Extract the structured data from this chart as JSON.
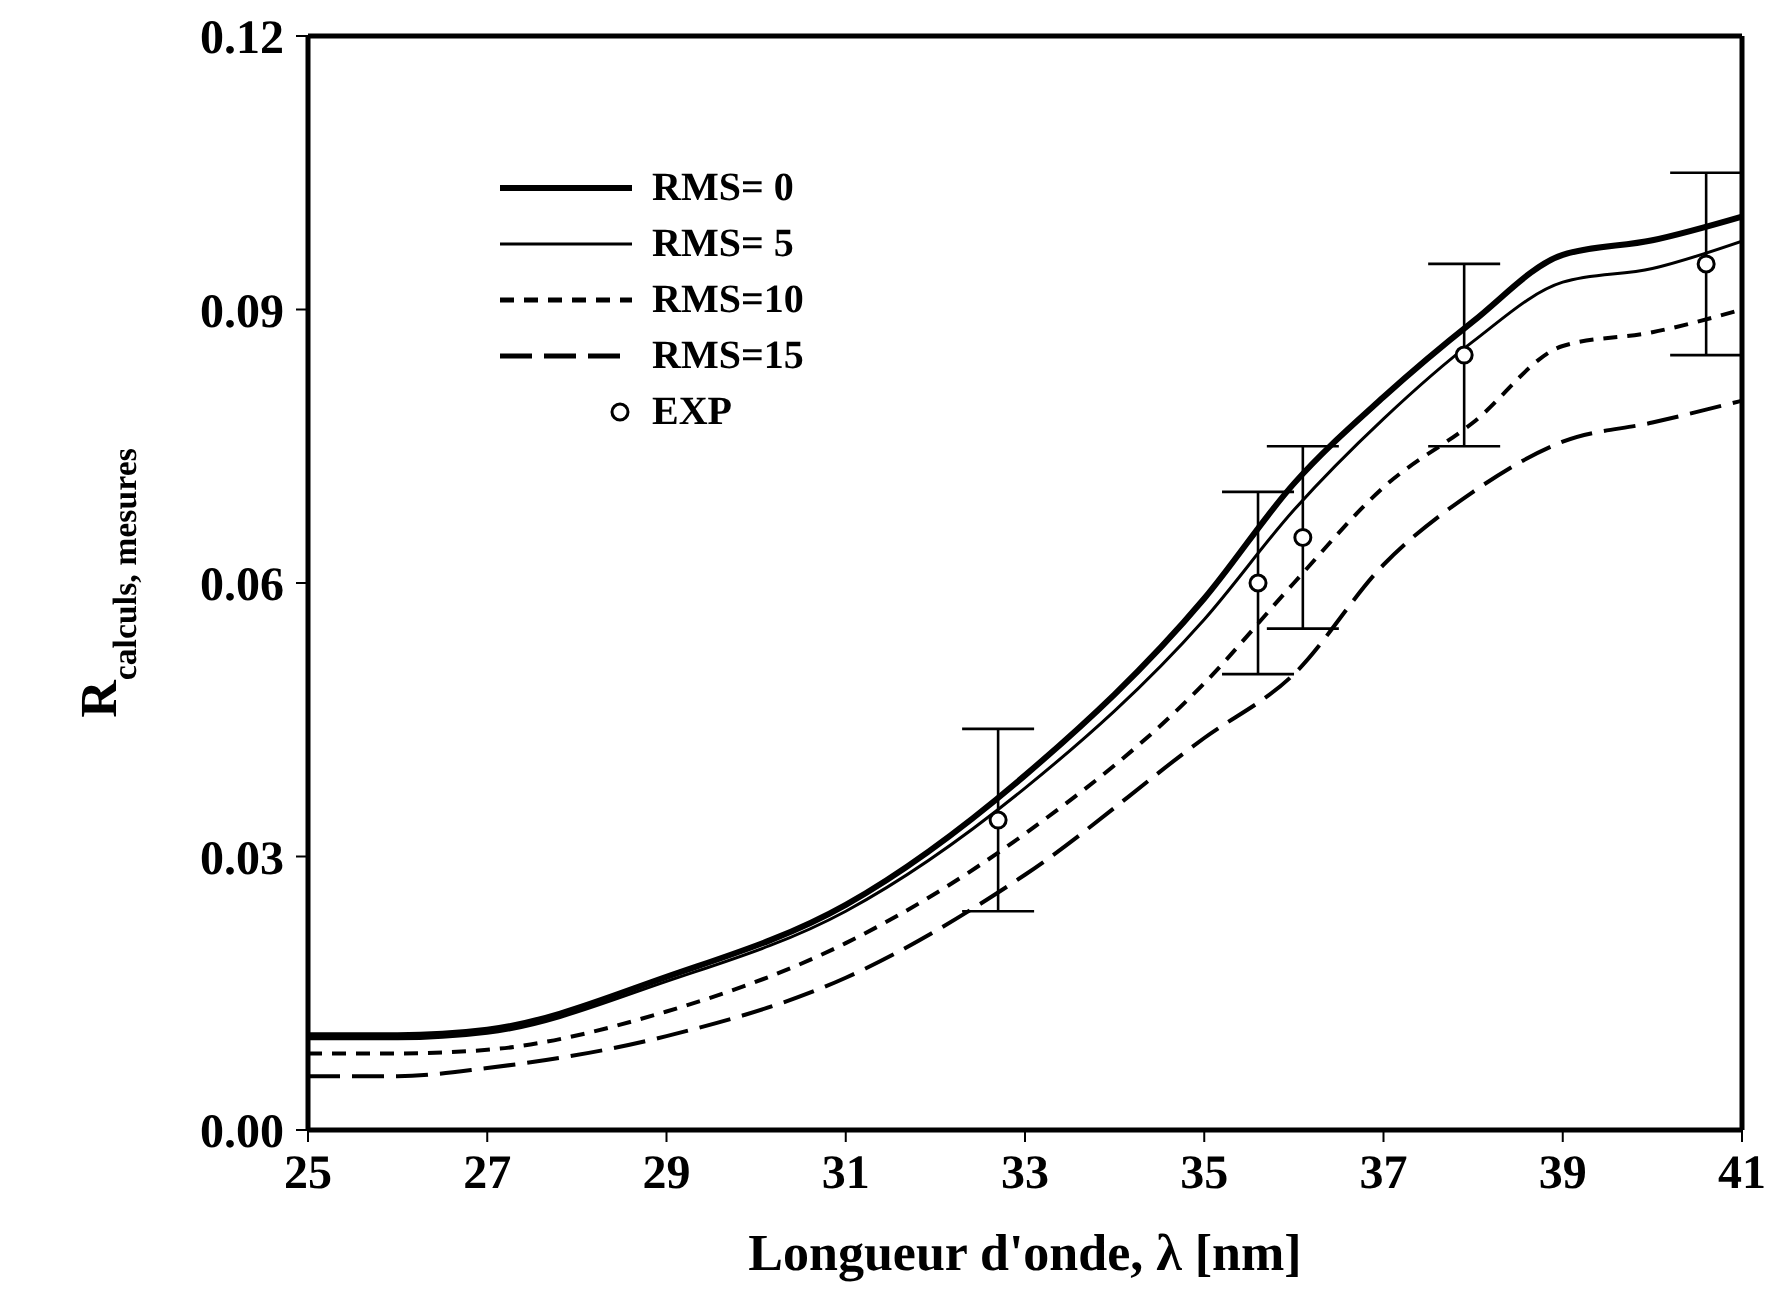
{
  "chart_data": {
    "type": "line",
    "xlabel": "Longueur d'onde, λ [nm]",
    "ylabel": "R$_{calculs, mesures}$",
    "xlim": [
      25,
      41
    ],
    "xticks": [
      25,
      27,
      29,
      31,
      33,
      35,
      37,
      39,
      41
    ],
    "ylim": [
      0,
      0.12
    ],
    "yticks": [
      {
        "value": 0,
        "label": "0.00"
      },
      0.03,
      0.06,
      0.09,
      0.12
    ],
    "grid": false,
    "legend": "top left",
    "marker": "none",
    "series": [
      {
        "name": "RMS= 0",
        "color": "#000000",
        "line_style": "solid",
        "x": [
          25,
          26,
          27,
          29,
          31,
          33,
          35,
          36,
          37,
          38,
          39,
          40,
          41
        ],
        "values": [
          0.0104,
          0.0104,
          0.011,
          0.0168,
          0.0247,
          0.0389,
          0.0583,
          0.0709,
          0.0804,
          0.0887,
          0.096,
          0.0976,
          0.1002
        ]
      },
      {
        "name": "RMS= 5",
        "color": "#000000",
        "line_style": "solid",
        "x": [
          25,
          26,
          27,
          29,
          31,
          33,
          35,
          36,
          37,
          38,
          39,
          40,
          41
        ],
        "values": [
          0.01,
          0.01,
          0.0106,
          0.0163,
          0.024,
          0.0375,
          0.056,
          0.068,
          0.078,
          0.0865,
          0.093,
          0.0945,
          0.0975
        ]
      },
      {
        "name": "RMS=10",
        "color": "#000000",
        "line_style": "dashed",
        "x": [
          25,
          26,
          27,
          29,
          31,
          33,
          35,
          36,
          37,
          38,
          39,
          40,
          41
        ],
        "values": [
          0.0084,
          0.0084,
          0.0088,
          0.013,
          0.0205,
          0.0325,
          0.049,
          0.06,
          0.0705,
          0.0776,
          0.086,
          0.0875,
          0.09
        ]
      },
      {
        "name": "RMS=15",
        "color": "#000000",
        "line_style": "dashed",
        "x": [
          25,
          26,
          27,
          29,
          31,
          33,
          35,
          36,
          37,
          38,
          39,
          40,
          41
        ],
        "values": [
          0.0059,
          0.0059,
          0.0068,
          0.0103,
          0.0167,
          0.028,
          0.043,
          0.05,
          0.062,
          0.07,
          0.0755,
          0.0776,
          0.08
        ]
      },
      {
        "name": "EXP",
        "type": "scatter",
        "marker": "circle",
        "color": "#000000",
        "x": [
          32.7,
          35.6,
          36.1,
          37.9,
          40.6
        ],
        "values": [
          0.034,
          0.06,
          0.065,
          0.085,
          0.095
        ],
        "errors": [
          0.01,
          0.01,
          0.01,
          0.01,
          0.01
        ]
      }
    ]
  }
}
